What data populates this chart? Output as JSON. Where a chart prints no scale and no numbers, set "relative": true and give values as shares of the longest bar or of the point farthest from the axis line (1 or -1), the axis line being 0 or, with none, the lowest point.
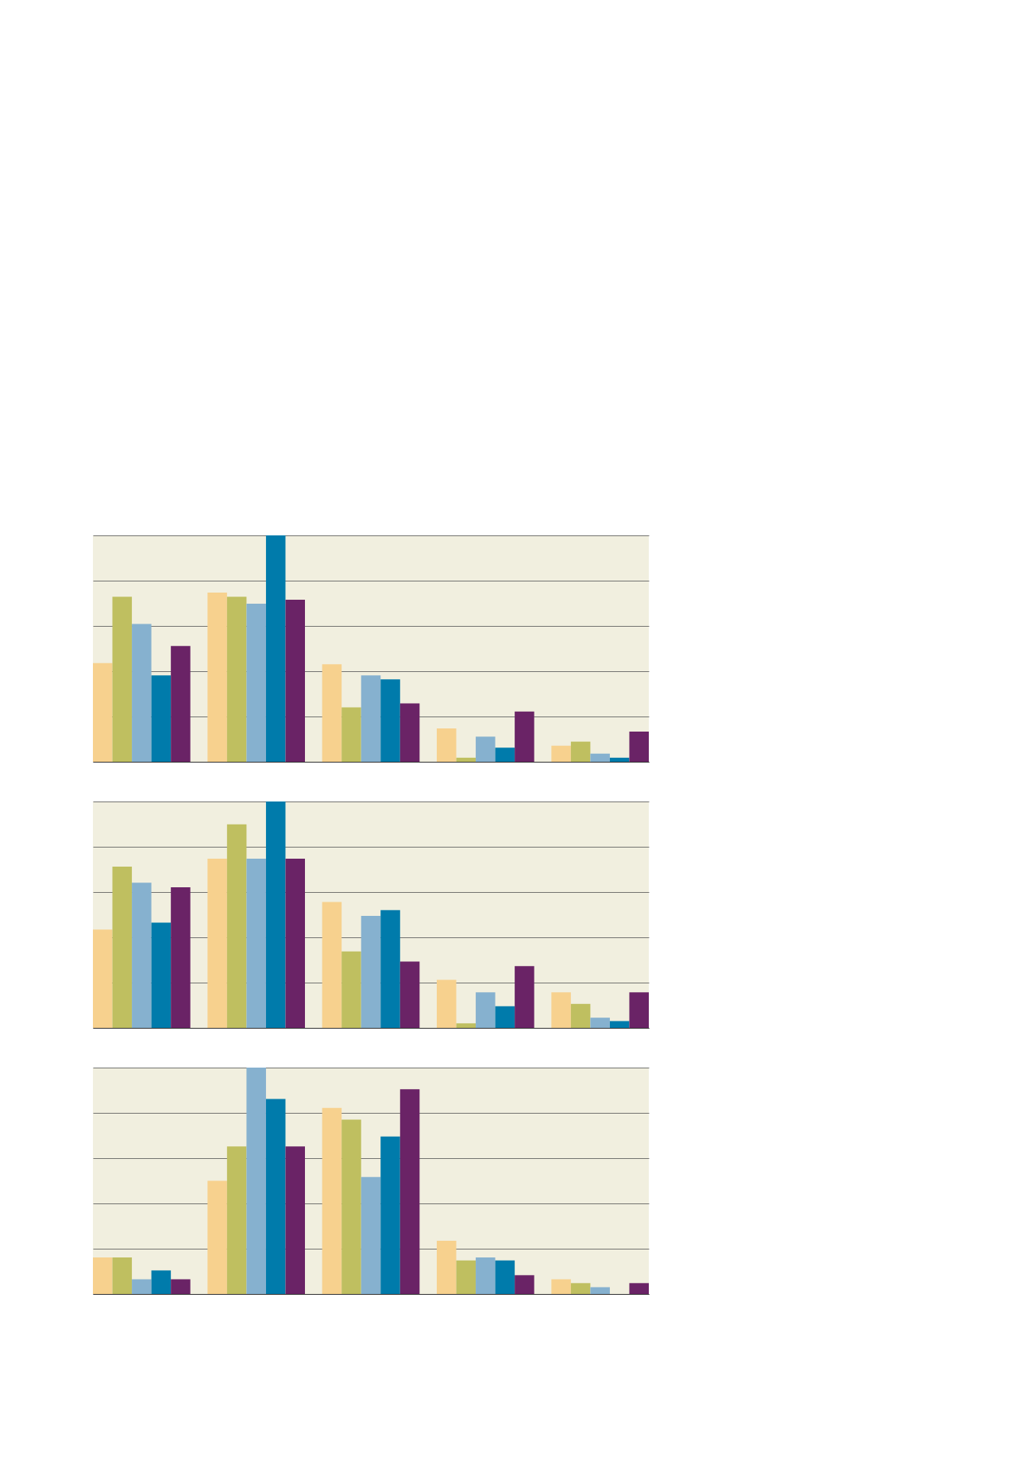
{
  "chart_data": [
    {
      "type": "bar",
      "categories": [
        null,
        null,
        null,
        null,
        null
      ],
      "relative": true,
      "grid": "y",
      "tick_labels": false,
      "series": [
        {
          "color": "#f7d18e",
          "values": [
            0.436,
            0.747,
            0.431,
            0.147,
            0.071
          ]
        },
        {
          "color": "#bfbf60",
          "values": [
            0.729,
            0.729,
            0.24,
            0.018,
            0.089
          ]
        },
        {
          "color": "#86b1cf",
          "values": [
            0.609,
            0.698,
            0.382,
            0.111,
            0.036
          ]
        },
        {
          "color": "#007bab",
          "values": [
            0.382,
            1,
            0.364,
            0.062,
            0.018
          ]
        },
        {
          "color": "#6a2366",
          "values": [
            0.511,
            0.716,
            0.258,
            0.222,
            0.133
          ]
        }
      ]
    },
    {
      "type": "bar",
      "categories": [
        null,
        null,
        null,
        null,
        null
      ],
      "relative": true,
      "grid": "y",
      "tick_labels": false,
      "series": [
        {
          "color": "#f7d18e",
          "values": [
            0.434,
            0.747,
            0.556,
            0.212,
            0.157
          ]
        },
        {
          "color": "#bfbf60",
          "values": [
            0.712,
            0.899,
            0.338,
            0.02,
            0.106
          ]
        },
        {
          "color": "#86b1cf",
          "values": [
            0.641,
            0.747,
            0.495,
            0.157,
            0.045
          ]
        },
        {
          "color": "#007bab",
          "values": [
            0.465,
            1,
            0.52,
            0.096,
            0.03
          ]
        },
        {
          "color": "#6a2366",
          "values": [
            0.621,
            0.747,
            0.293,
            0.273,
            0.157
          ]
        }
      ]
    },
    {
      "type": "bar",
      "categories": [
        null,
        null,
        null,
        null,
        null
      ],
      "relative": true,
      "grid": "y",
      "tick_labels": false,
      "series": [
        {
          "color": "#f7d18e",
          "values": [
            0.161,
            0.5,
            0.822,
            0.235,
            0.065
          ]
        },
        {
          "color": "#bfbf60",
          "values": [
            0.161,
            0.652,
            0.77,
            0.148,
            0.048
          ]
        },
        {
          "color": "#86b1cf",
          "values": [
            0.065,
            1,
            0.517,
            0.161,
            0.03
          ]
        },
        {
          "color": "#007bab",
          "values": [
            0.104,
            0.861,
            0.696,
            0.148,
            null
          ]
        },
        {
          "color": "#6a2366",
          "values": [
            0.065,
            0.652,
            0.904,
            0.083,
            0.048
          ]
        }
      ]
    }
  ]
}
